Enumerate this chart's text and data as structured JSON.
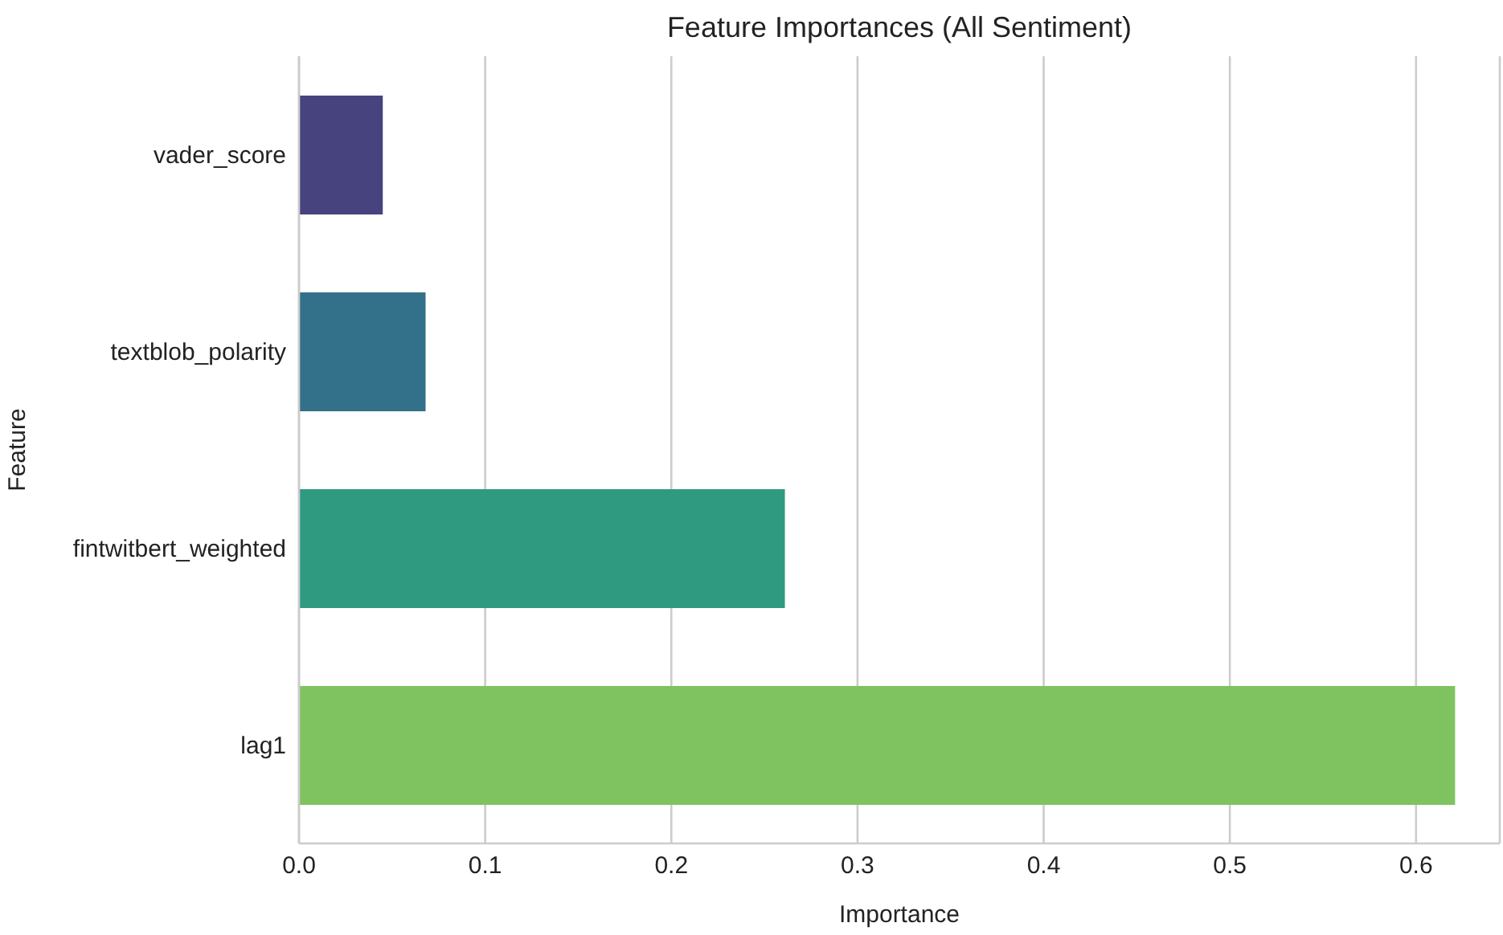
{
  "chart_data": {
    "type": "bar",
    "orientation": "horizontal",
    "title": "Feature Importances (All Sentiment)",
    "xlabel": "Importance",
    "ylabel": "Feature",
    "categories": [
      "vader_score",
      "textblob_polarity",
      "fintwitbert_weighted",
      "lag1"
    ],
    "values": [
      0.045,
      0.068,
      0.261,
      0.621
    ],
    "colors": [
      "#46437f",
      "#33718a",
      "#2f9a7f",
      "#7fc360"
    ],
    "xlim": [
      0,
      0.645
    ],
    "xticks": [
      {
        "value": 0,
        "label": "0.0"
      },
      0.1,
      0.2,
      0.3,
      0.4,
      0.5,
      0.6
    ],
    "grid": "x"
  }
}
